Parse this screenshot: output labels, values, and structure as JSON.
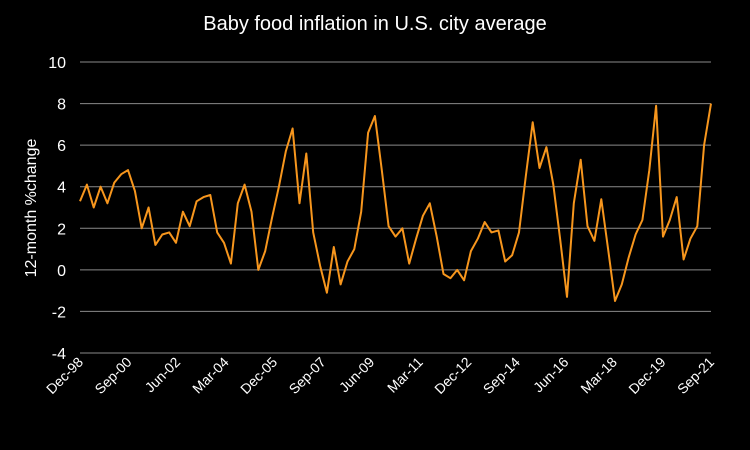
{
  "chart_data": {
    "type": "line",
    "title": "Baby food inflation in U.S. city average",
    "xlabel": "",
    "ylabel": "12-month %change",
    "ylim": [
      -4,
      10
    ],
    "yticks": [
      10,
      8,
      6,
      4,
      2,
      0,
      -2,
      -4
    ],
    "grid": true,
    "xticks": [
      "Dec-98",
      "Sep-00",
      "Jun-02",
      "Mar-04",
      "Dec-05",
      "Sep-07",
      "Jun-09",
      "Mar-11",
      "Dec-12",
      "Sep-14",
      "Jun-16",
      "Mar-18",
      "Dec-19",
      "Sep-21"
    ],
    "series": [
      {
        "name": "",
        "color": "#f7961d",
        "x": [
          "Dec-98",
          "Mar-99",
          "Jun-99",
          "Sep-99",
          "Dec-99",
          "Mar-00",
          "Jun-00",
          "Sep-00",
          "Dec-00",
          "Mar-01",
          "Jun-01",
          "Sep-01",
          "Dec-01",
          "Mar-02",
          "Jun-02",
          "Sep-02",
          "Dec-02",
          "Mar-03",
          "Jun-03",
          "Sep-03",
          "Dec-03",
          "Mar-04",
          "Jun-04",
          "Sep-04",
          "Dec-04",
          "Mar-05",
          "Jun-05",
          "Sep-05",
          "Dec-05",
          "Mar-06",
          "Jun-06",
          "Sep-06",
          "Dec-06",
          "Mar-07",
          "Jun-07",
          "Sep-07",
          "Dec-07",
          "Mar-08",
          "Jun-08",
          "Sep-08",
          "Dec-08",
          "Mar-09",
          "Jun-09",
          "Sep-09",
          "Dec-09",
          "Mar-10",
          "Jun-10",
          "Sep-10",
          "Dec-10",
          "Mar-11",
          "Jun-11",
          "Sep-11",
          "Dec-11",
          "Mar-12",
          "Jun-12",
          "Sep-12",
          "Dec-12",
          "Mar-13",
          "Jun-13",
          "Sep-13",
          "Dec-13",
          "Mar-14",
          "Jun-14",
          "Sep-14",
          "Dec-14",
          "Mar-15",
          "Jun-15",
          "Sep-15",
          "Dec-15",
          "Mar-16",
          "Jun-16",
          "Sep-16",
          "Dec-16",
          "Mar-17",
          "Jun-17",
          "Sep-17",
          "Dec-17",
          "Mar-18",
          "Jun-18",
          "Sep-18",
          "Dec-18",
          "Mar-19",
          "Jun-19",
          "Sep-19",
          "Dec-19",
          "Mar-20",
          "Jun-20",
          "Sep-20",
          "Dec-20",
          "Mar-21",
          "Jun-21",
          "Sep-21",
          "Dec-21"
        ],
        "values": [
          3.3,
          4.1,
          3.0,
          4.0,
          3.2,
          4.2,
          4.6,
          4.8,
          3.8,
          2.0,
          3.0,
          1.2,
          1.7,
          1.8,
          1.3,
          2.8,
          2.1,
          3.3,
          3.5,
          3.6,
          1.8,
          1.3,
          0.3,
          3.2,
          4.1,
          2.8,
          0.0,
          0.9,
          2.5,
          4.0,
          5.7,
          6.8,
          3.2,
          5.6,
          1.8,
          0.2,
          -1.1,
          1.1,
          -0.7,
          0.4,
          1.0,
          2.8,
          6.6,
          7.4,
          4.8,
          2.1,
          1.6,
          2.0,
          0.3,
          1.5,
          2.6,
          3.2,
          1.6,
          -0.2,
          -0.4,
          0.0,
          -0.5,
          0.9,
          1.5,
          2.3,
          1.8,
          1.9,
          0.4,
          0.7,
          1.8,
          4.5,
          7.1,
          4.9,
          5.9,
          4.1,
          1.5,
          -1.3,
          3.2,
          5.3,
          2.1,
          1.4,
          3.4,
          1.0,
          -1.5,
          -0.7,
          0.6,
          1.7,
          2.4,
          4.8,
          7.9,
          1.6,
          2.4,
          3.5,
          0.5,
          1.5,
          2.1,
          6.0,
          8.0
        ]
      }
    ]
  }
}
